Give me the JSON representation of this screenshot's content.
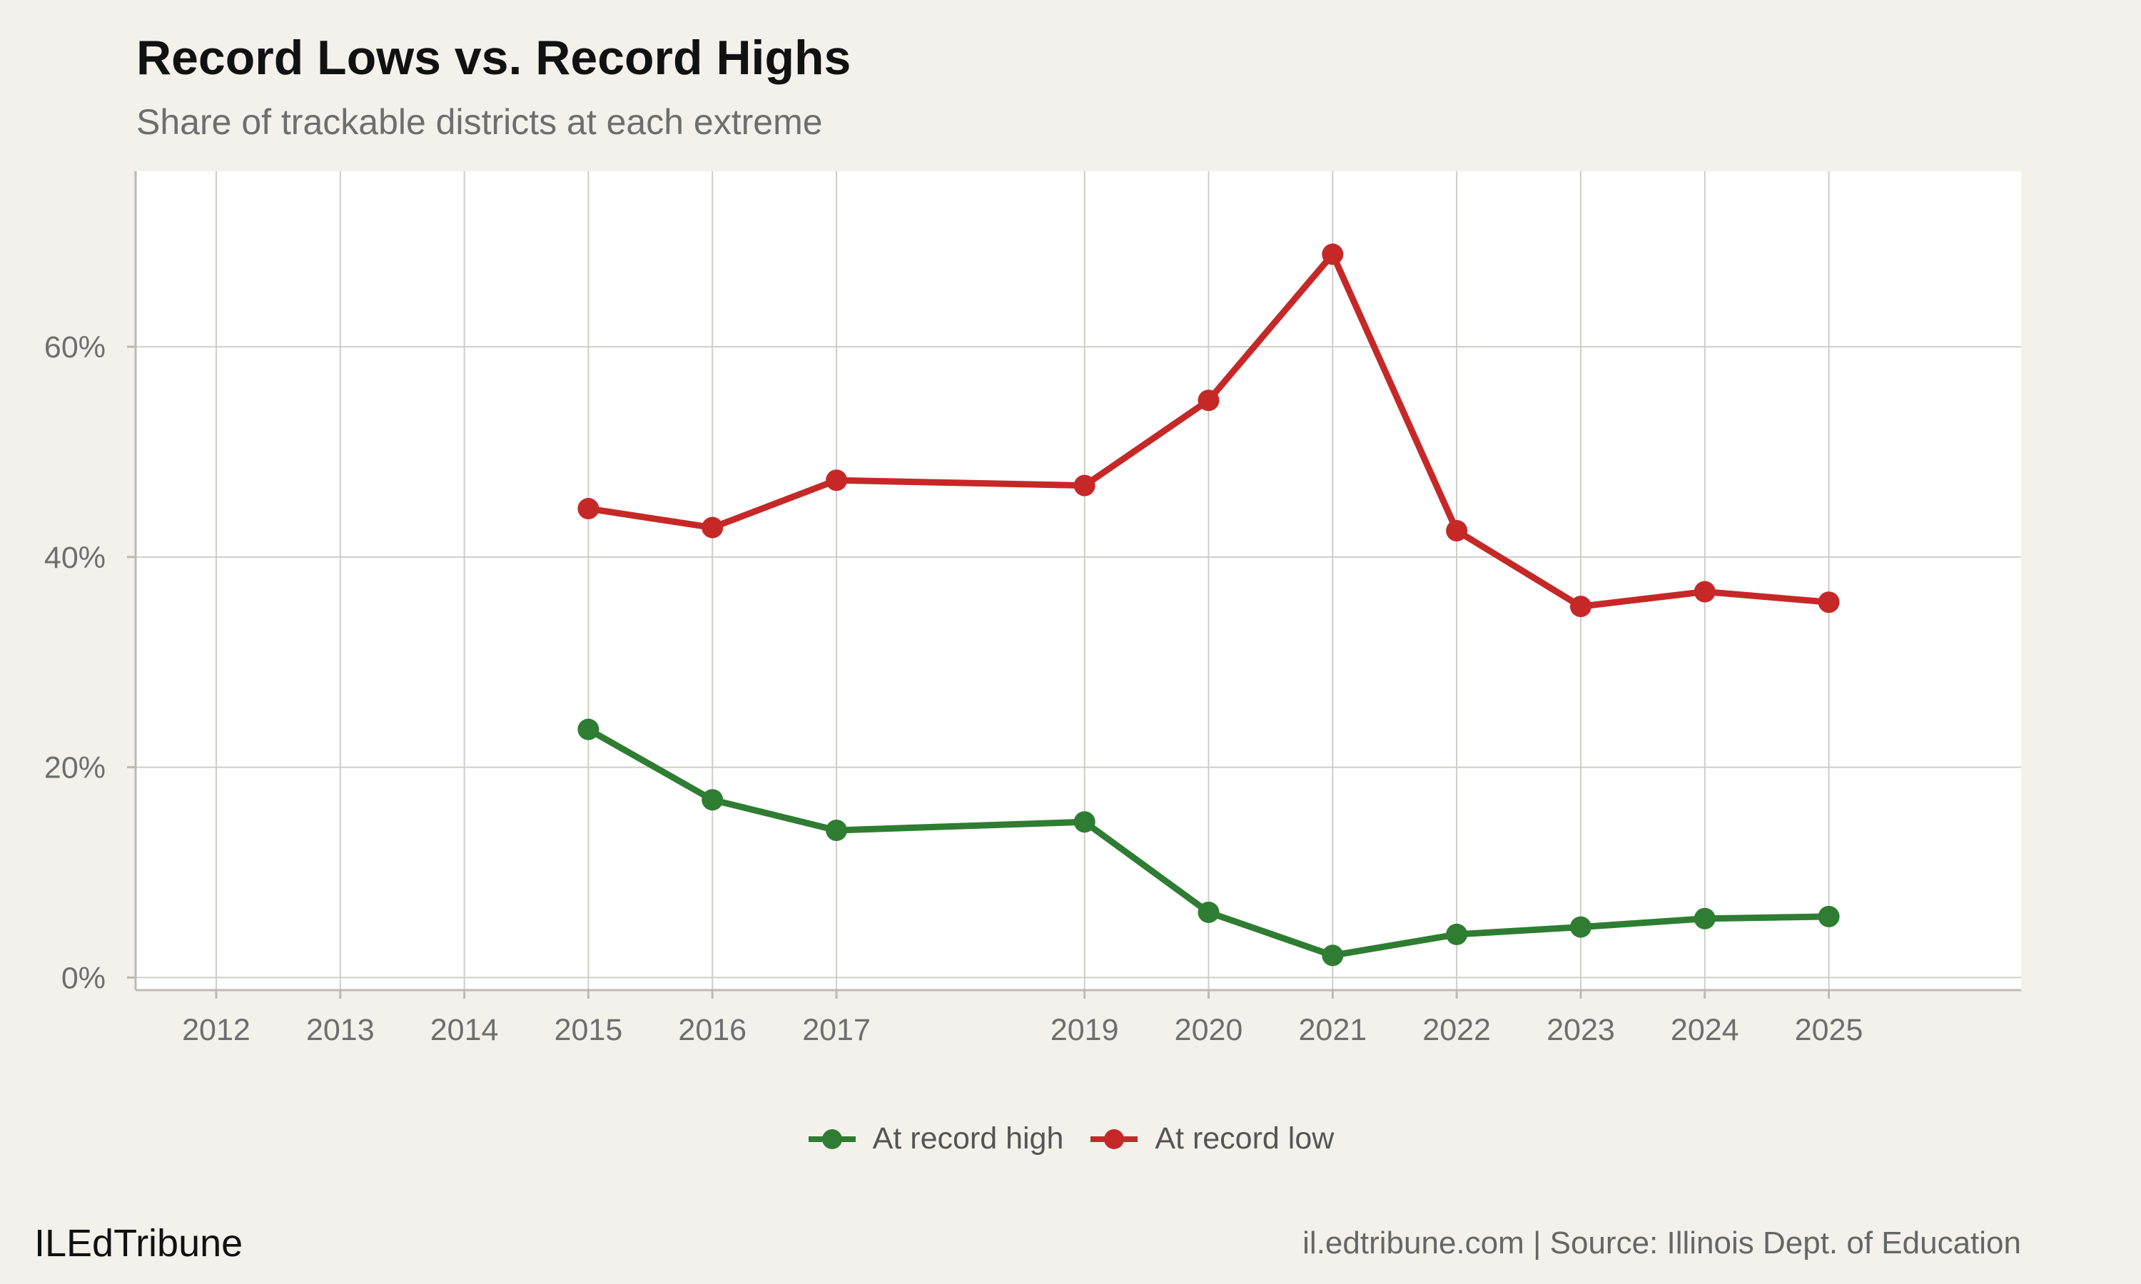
{
  "title": "Record Lows vs. Record Highs",
  "subtitle": "Share of trackable districts at each extreme",
  "brand": "ILEdTribune",
  "source": "il.edtribune.com | Source: Illinois Dept. of Education",
  "colors": {
    "background": "#f4f1ec",
    "panel": "#ffffff",
    "grid": "#cfcdc8",
    "high": "#2e7d32",
    "low": "#c62828"
  },
  "chart_data": {
    "type": "line",
    "title": "Record Lows vs. Record Highs",
    "xlabel": "",
    "ylabel": "",
    "x_ticks": [
      2012,
      2013,
      2014,
      2015,
      2016,
      2017,
      2019,
      2020,
      2021,
      2022,
      2023,
      2024,
      2025
    ],
    "xlim": [
      2011.35,
      2026.55
    ],
    "ylim": [
      -1.2,
      76.7
    ],
    "y_ticks": [
      0,
      20,
      40,
      60
    ],
    "y_tick_labels": [
      "0%",
      "20%",
      "40%",
      "60%"
    ],
    "x": [
      2015,
      2016,
      2017,
      2019,
      2020,
      2021,
      2022,
      2023,
      2024,
      2025
    ],
    "series": [
      {
        "name": "At record high",
        "color": "#2e7d32",
        "values": [
          23.6,
          16.9,
          14.0,
          14.8,
          6.2,
          2.1,
          4.1,
          4.8,
          5.6,
          5.8
        ]
      },
      {
        "name": "At record low",
        "color": "#c62828",
        "values": [
          44.6,
          42.8,
          47.3,
          46.8,
          54.9,
          68.8,
          42.5,
          35.3,
          36.7,
          35.7
        ]
      }
    ],
    "legend_position": "bottom",
    "grid": true
  }
}
